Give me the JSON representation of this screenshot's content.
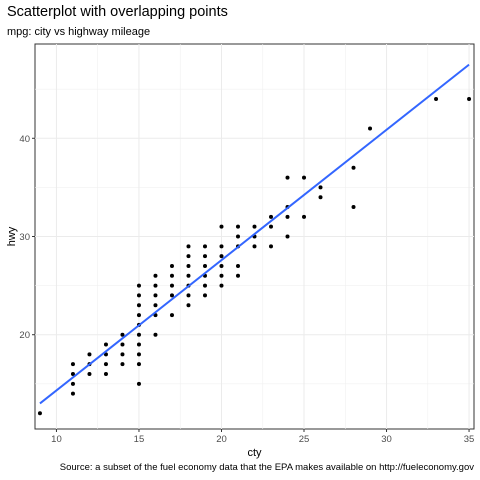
{
  "title": "Scatterplot with overlapping points",
  "subtitle": "mpg: city vs highway mileage",
  "caption": "Source: a subset of the fuel economy data that the EPA makes available on http://fueleconomy.gov",
  "chart_data": {
    "type": "scatter",
    "title": "Scatterplot with overlapping points",
    "subtitle": "mpg: city vs highway mileage",
    "xlabel": "cty",
    "ylabel": "hwy",
    "xlim": [
      8.7,
      35.3
    ],
    "ylim": [
      10.4,
      49.6
    ],
    "x_ticks": [
      10,
      15,
      20,
      25,
      30,
      35
    ],
    "y_ticks": [
      20,
      30,
      40
    ],
    "grid": true,
    "points": [
      [
        9,
        12
      ],
      [
        11,
        14
      ],
      [
        11,
        15
      ],
      [
        11,
        16
      ],
      [
        11,
        17
      ],
      [
        12,
        16
      ],
      [
        12,
        17
      ],
      [
        12,
        18
      ],
      [
        13,
        16
      ],
      [
        13,
        17
      ],
      [
        13,
        18
      ],
      [
        13,
        19
      ],
      [
        14,
        17
      ],
      [
        14,
        18
      ],
      [
        14,
        19
      ],
      [
        14,
        20
      ],
      [
        15,
        15
      ],
      [
        15,
        17
      ],
      [
        15,
        18
      ],
      [
        15,
        19
      ],
      [
        15,
        20
      ],
      [
        15,
        21
      ],
      [
        15,
        22
      ],
      [
        15,
        23
      ],
      [
        15,
        24
      ],
      [
        15,
        25
      ],
      [
        16,
        20
      ],
      [
        16,
        22
      ],
      [
        16,
        23
      ],
      [
        16,
        24
      ],
      [
        16,
        25
      ],
      [
        16,
        26
      ],
      [
        17,
        22
      ],
      [
        17,
        24
      ],
      [
        17,
        25
      ],
      [
        17,
        26
      ],
      [
        17,
        27
      ],
      [
        18,
        23
      ],
      [
        18,
        24
      ],
      [
        18,
        25
      ],
      [
        18,
        26
      ],
      [
        18,
        27
      ],
      [
        18,
        28
      ],
      [
        18,
        29
      ],
      [
        19,
        24
      ],
      [
        19,
        25
      ],
      [
        19,
        26
      ],
      [
        19,
        27
      ],
      [
        19,
        28
      ],
      [
        19,
        29
      ],
      [
        20,
        25
      ],
      [
        20,
        26
      ],
      [
        20,
        27
      ],
      [
        20,
        28
      ],
      [
        20,
        29
      ],
      [
        20,
        31
      ],
      [
        21,
        26
      ],
      [
        21,
        27
      ],
      [
        21,
        29
      ],
      [
        21,
        30
      ],
      [
        21,
        31
      ],
      [
        22,
        29
      ],
      [
        22,
        30
      ],
      [
        22,
        31
      ],
      [
        23,
        29
      ],
      [
        23,
        31
      ],
      [
        23,
        32
      ],
      [
        24,
        30
      ],
      [
        24,
        32
      ],
      [
        24,
        33
      ],
      [
        24,
        36
      ],
      [
        25,
        32
      ],
      [
        25,
        36
      ],
      [
        26,
        34
      ],
      [
        26,
        35
      ],
      [
        28,
        33
      ],
      [
        28,
        37
      ],
      [
        29,
        41
      ],
      [
        33,
        44
      ],
      [
        35,
        44
      ]
    ],
    "trend_line": {
      "type": "lm",
      "color": "#3366ff",
      "points": [
        [
          9,
          13
        ],
        [
          35,
          47.5
        ]
      ]
    },
    "point_color": "#000000"
  }
}
